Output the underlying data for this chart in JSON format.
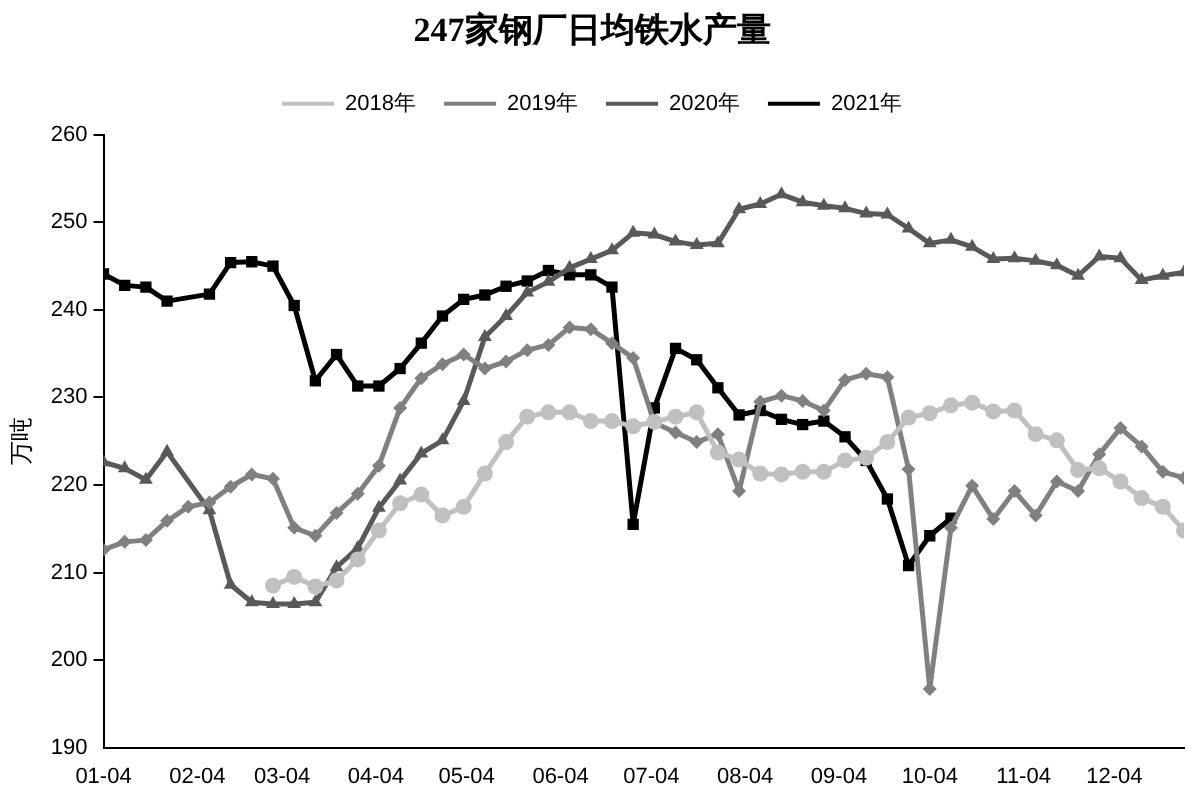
{
  "chart_data": {
    "type": "line",
    "title": "247家钢厂日均铁水产量",
    "ylabel": "万吨",
    "x": [
      "--01-04",
      "--01-11",
      "--01-18",
      "--01-25",
      "--02-01",
      "--02-08",
      "--02-15",
      "--02-22",
      "--03-01",
      "--03-08",
      "--03-15",
      "--03-22",
      "--03-29",
      "--04-05",
      "--04-12",
      "--04-19",
      "--04-26",
      "--05-03",
      "--05-10",
      "--05-17",
      "--05-24",
      "--05-31",
      "--06-07",
      "--06-14",
      "--06-21",
      "--06-28",
      "--07-05",
      "--07-12",
      "--07-19",
      "--07-26",
      "--08-02",
      "--08-09",
      "--08-16",
      "--08-23",
      "--08-30",
      "--09-06",
      "--09-13",
      "--09-20",
      "--09-27",
      "--10-04",
      "--10-11",
      "--10-18",
      "--10-25",
      "--11-01",
      "--11-08",
      "--11-15",
      "--11-22",
      "--11-29",
      "--12-06",
      "--12-13",
      "--12-20",
      "--12-27"
    ],
    "series": [
      {
        "name": "2018年",
        "color": "#c0c0c0",
        "marker": "circle",
        "values": [
          null,
          null,
          null,
          null,
          null,
          null,
          null,
          null,
          208.5,
          209.5,
          208.4,
          209.1,
          211.5,
          214.8,
          217.9,
          218.9,
          216.5,
          217.5,
          221.3,
          224.9,
          227.8,
          228.3,
          228.3,
          227.3,
          227.3,
          226.7,
          227.2,
          227.8,
          228.3,
          223.7,
          222.9,
          221.3,
          221.2,
          221.5,
          221.5,
          222.8,
          223.1,
          224.9,
          227.7,
          228.2,
          229.1,
          229.4,
          228.4,
          228.5,
          225.8,
          225.1,
          221.7,
          221.9,
          220.4,
          218.5,
          217.5,
          214.8
        ]
      },
      {
        "name": "2019年",
        "color": "#808080",
        "marker": "diamond",
        "values": [
          212.6,
          213.5,
          213.7,
          215.9,
          217.5,
          218.0,
          219.8,
          221.2,
          220.7,
          215.1,
          214.2,
          216.8,
          219.0,
          222.2,
          228.8,
          232.2,
          233.8,
          234.9,
          233.3,
          234.1,
          235.4,
          236.0,
          238.0,
          237.8,
          236.2,
          234.5,
          227.1,
          226.0,
          224.9,
          225.8,
          219.3,
          229.5,
          230.2,
          229.6,
          228.5,
          232.0,
          232.7,
          232.3,
          221.8,
          196.7,
          215.1,
          219.9,
          216.1,
          219.3,
          216.5,
          220.4,
          219.3,
          223.5,
          226.5,
          224.4,
          221.5,
          220.8
        ]
      },
      {
        "name": "2020年",
        "color": "#595959",
        "marker": "triangle",
        "x": [
          "--01-04",
          "--01-11",
          "--01-18",
          "--01-25",
          "--02-08",
          "--02-15",
          "--02-22",
          "--03-01",
          "--03-08",
          "--03-15",
          "--03-22",
          "--03-29",
          "--04-05",
          "--04-12",
          "--04-19",
          "--04-26",
          "--05-03",
          "--05-10",
          "--05-17",
          "--05-24",
          "--05-31",
          "--06-07",
          "--06-14",
          "--06-21",
          "--06-28",
          "--07-05",
          "--07-12",
          "--07-19",
          "--07-26",
          "--08-02",
          "--08-09",
          "--08-16",
          "--08-23",
          "--08-30",
          "--09-06",
          "--09-13",
          "--09-20",
          "--09-27",
          "--10-04",
          "--10-11",
          "--10-18",
          "--10-25",
          "--11-01",
          "--11-08",
          "--11-15",
          "--11-22",
          "--11-29",
          "--12-06",
          "--12-13",
          "--12-20",
          "--12-27"
        ],
        "values": [
          222.6,
          221.9,
          220.6,
          223.8,
          217.1,
          208.6,
          206.6,
          206.4,
          206.4,
          206.6,
          210.6,
          212.8,
          217.4,
          220.5,
          223.6,
          225.1,
          229.6,
          236.9,
          239.3,
          242.0,
          243.2,
          244.8,
          245.8,
          246.8,
          248.8,
          248.6,
          247.8,
          247.4,
          247.6,
          251.5,
          252.1,
          253.2,
          252.3,
          251.9,
          251.6,
          251.0,
          250.9,
          249.3,
          247.6,
          248.0,
          247.2,
          245.8,
          245.9,
          245.6,
          245.1,
          243.9,
          246.1,
          245.9,
          243.4,
          243.9,
          244.3
        ]
      },
      {
        "name": "2021年",
        "color": "#000000",
        "marker": "square",
        "x": [
          "--01-04",
          "--01-11",
          "--01-18",
          "--01-25",
          "--02-08",
          "--02-15",
          "--02-22",
          "--03-01",
          "--03-08",
          "--03-15",
          "--03-22",
          "--03-29",
          "--04-05",
          "--04-12",
          "--04-19",
          "--04-26",
          "--05-03",
          "--05-10",
          "--05-17",
          "--05-24",
          "--05-31",
          "--06-07",
          "--06-14",
          "--06-21",
          "--06-28",
          "--07-05",
          "--07-12",
          "--07-19",
          "--07-26",
          "--08-02",
          "--08-09",
          "--08-16",
          "--08-23",
          "--08-30",
          "--09-06",
          "--09-13",
          "--09-20",
          "--09-27",
          "--10-04",
          "--10-11"
        ],
        "values": [
          244.1,
          242.8,
          242.6,
          241.0,
          241.8,
          245.4,
          245.5,
          245.0,
          240.5,
          231.9,
          234.9,
          231.3,
          231.3,
          233.3,
          236.2,
          239.3,
          241.2,
          241.7,
          242.7,
          243.3,
          244.5,
          244.0,
          244.0,
          242.6,
          215.5,
          228.8,
          235.6,
          234.3,
          231.1,
          228.0,
          228.5,
          227.5,
          226.9,
          227.3,
          225.5,
          222.8,
          218.4,
          210.8,
          214.2,
          216.2
        ]
      }
    ],
    "xlim": [
      "--01-04",
      "--12-27"
    ],
    "xticks": [
      {
        "value": "--01-04",
        "label": "01-04"
      },
      {
        "value": "--02-04",
        "label": "02-04"
      },
      {
        "value": "--03-04",
        "label": "03-04"
      },
      {
        "value": "--04-04",
        "label": "04-04"
      },
      {
        "value": "--05-04",
        "label": "05-04"
      },
      {
        "value": "--06-04",
        "label": "06-04"
      },
      {
        "value": "--07-04",
        "label": "07-04"
      },
      {
        "value": "--08-04",
        "label": "08-04"
      },
      {
        "value": "--09-04",
        "label": "09-04"
      },
      {
        "value": "--10-04",
        "label": "10-04"
      },
      {
        "value": "--11-04",
        "label": "11-04"
      },
      {
        "value": "--12-04",
        "label": "12-04"
      }
    ],
    "ylim": [
      190,
      260
    ],
    "yticks": [
      190,
      200,
      210,
      220,
      230,
      240,
      250,
      260
    ],
    "grid": false,
    "legend": "top"
  }
}
